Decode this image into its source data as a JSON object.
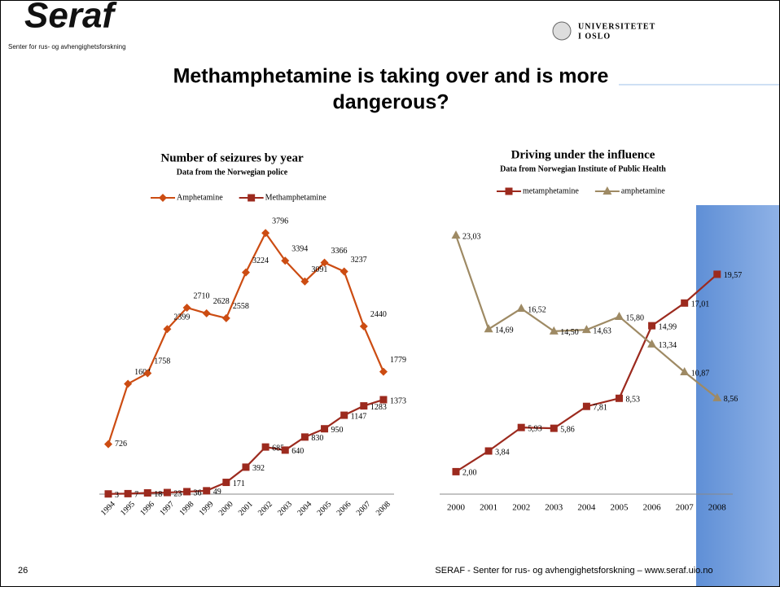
{
  "slide": {
    "logo": "Seraf",
    "logo_tagline": "Senter for rus- og avhengighetsforskning",
    "university_line1": "UNIVERSITETET",
    "university_line2": "I OSLO",
    "title_line1": "Methamphetamine is taking over and is more",
    "title_line2": "dangerous?",
    "page_number": "26",
    "footer": "SERAF - Senter for rus- og avhengighetsforskning – www.seraf.uio.no"
  },
  "chart_data": [
    {
      "type": "line",
      "title": "Number of seizures by year",
      "subtitle": "Data from the Norwegian police",
      "categories": [
        "1994",
        "1995",
        "1996",
        "1997",
        "1998",
        "1999",
        "2000",
        "2001",
        "2002",
        "2003",
        "2004",
        "2005",
        "2006",
        "2007",
        "2008"
      ],
      "ylim": [
        0,
        4000
      ],
      "legend": "top",
      "rotate_categories": true,
      "series": [
        {
          "name": "Amphetamine",
          "color": "#cc4c12",
          "marker": "diamond",
          "values": [
            726,
            1604,
            1758,
            2399,
            2710,
            2628,
            2558,
            3224,
            3796,
            3394,
            3091,
            3366,
            3237,
            2440,
            1779
          ]
        },
        {
          "name": "Methamphetamine",
          "color": "#9c2a1e",
          "marker": "square",
          "values": [
            3,
            7,
            18,
            23,
            36,
            49,
            171,
            392,
            685,
            640,
            830,
            950,
            1147,
            1283,
            1373
          ]
        }
      ]
    },
    {
      "type": "line",
      "title": "Driving under the influence",
      "subtitle": "Data from Norwegian Institute of Public Health",
      "categories": [
        "2000",
        "2001",
        "2002",
        "2003",
        "2004",
        "2005",
        "2006",
        "2007",
        "2008"
      ],
      "ylim": [
        0,
        25
      ],
      "legend": "top",
      "rotate_categories": false,
      "series": [
        {
          "name": "metamphetamine",
          "color": "#9c2a1e",
          "marker": "square",
          "values": [
            2.0,
            3.84,
            5.93,
            5.86,
            7.81,
            8.53,
            14.99,
            17.01,
            19.57
          ],
          "value_labels": [
            "2,00",
            "3,84",
            "5,93",
            "5,86",
            "7,81",
            "8,53",
            "14,99",
            "17,01",
            "19,57"
          ]
        },
        {
          "name": "amphetamine",
          "color": "#9e8a64",
          "marker": "triangle",
          "values": [
            23.03,
            14.69,
            16.52,
            14.5,
            14.63,
            15.8,
            13.34,
            10.87,
            8.56
          ],
          "value_labels": [
            "23,03",
            "14,69",
            "16,52",
            "14,50",
            "14,63",
            "15,80",
            "13,34",
            "10,87",
            "8,56"
          ]
        }
      ]
    }
  ]
}
